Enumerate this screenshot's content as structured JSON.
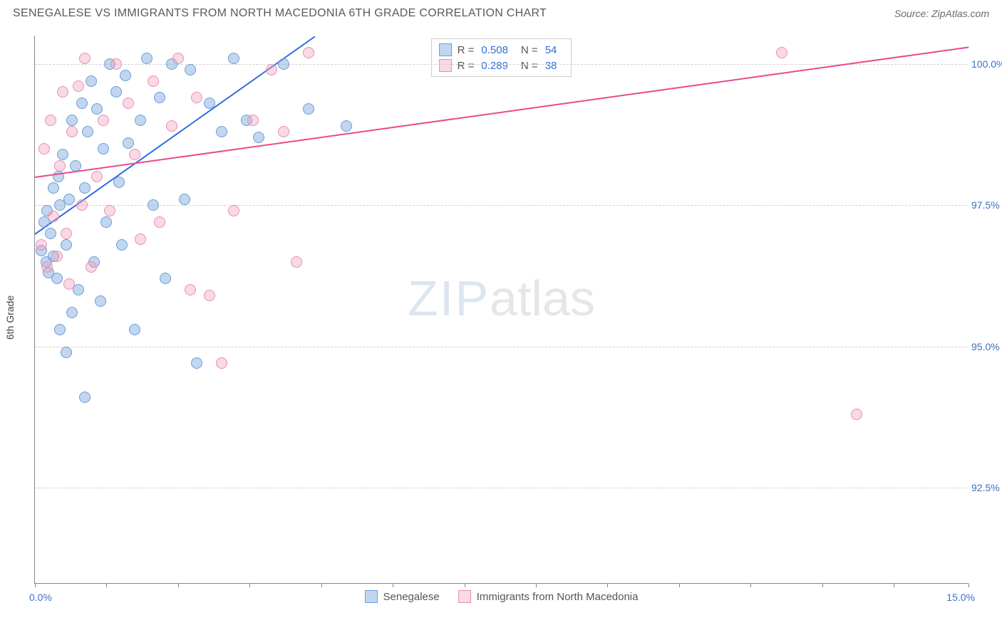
{
  "header": {
    "title": "SENEGALESE VS IMMIGRANTS FROM NORTH MACEDONIA 6TH GRADE CORRELATION CHART",
    "source": "Source: ZipAtlas.com"
  },
  "chart": {
    "type": "scatter",
    "y_axis_label": "6th Grade",
    "xlim": [
      0.0,
      15.0
    ],
    "ylim": [
      90.8,
      100.5
    ],
    "x_first_tick_label": "0.0%",
    "x_last_tick_label": "15.0%",
    "x_tick_positions": [
      0,
      1.15,
      2.3,
      3.45,
      4.6,
      5.75,
      6.9,
      8.05,
      9.2,
      10.35,
      11.5,
      12.65,
      13.8,
      15.0
    ],
    "y_ticks": [
      {
        "v": 92.5,
        "label": "92.5%"
      },
      {
        "v": 95.0,
        "label": "95.0%"
      },
      {
        "v": 97.5,
        "label": "97.5%"
      },
      {
        "v": 100.0,
        "label": "100.0%"
      }
    ],
    "grid_color": "#d0d0d0",
    "background": "#ffffff",
    "watermark": {
      "part1": "ZIP",
      "part2": "atlas"
    },
    "series": [
      {
        "name": "Senegalese",
        "fill": "rgba(120,165,220,0.45)",
        "stroke": "#6a9fd8",
        "line_color": "#2d6fe0",
        "line": {
          "x1": 0.0,
          "y1": 97.0,
          "x2": 4.5,
          "y2": 100.5
        },
        "stats": {
          "R": "0.508",
          "N": "54"
        },
        "points": [
          [
            0.1,
            96.7
          ],
          [
            0.15,
            97.2
          ],
          [
            0.18,
            96.5
          ],
          [
            0.2,
            97.4
          ],
          [
            0.22,
            96.3
          ],
          [
            0.25,
            97.0
          ],
          [
            0.3,
            96.6
          ],
          [
            0.3,
            97.8
          ],
          [
            0.35,
            96.2
          ],
          [
            0.38,
            98.0
          ],
          [
            0.4,
            95.3
          ],
          [
            0.4,
            97.5
          ],
          [
            0.45,
            98.4
          ],
          [
            0.5,
            94.9
          ],
          [
            0.5,
            96.8
          ],
          [
            0.55,
            97.6
          ],
          [
            0.6,
            99.0
          ],
          [
            0.6,
            95.6
          ],
          [
            0.65,
            98.2
          ],
          [
            0.7,
            96.0
          ],
          [
            0.75,
            99.3
          ],
          [
            0.8,
            94.1
          ],
          [
            0.8,
            97.8
          ],
          [
            0.85,
            98.8
          ],
          [
            0.9,
            99.7
          ],
          [
            0.95,
            96.5
          ],
          [
            1.0,
            99.2
          ],
          [
            1.05,
            95.8
          ],
          [
            1.1,
            98.5
          ],
          [
            1.15,
            97.2
          ],
          [
            1.2,
            100.0
          ],
          [
            1.3,
            99.5
          ],
          [
            1.35,
            97.9
          ],
          [
            1.4,
            96.8
          ],
          [
            1.45,
            99.8
          ],
          [
            1.5,
            98.6
          ],
          [
            1.6,
            95.3
          ],
          [
            1.7,
            99.0
          ],
          [
            1.8,
            100.1
          ],
          [
            1.9,
            97.5
          ],
          [
            2.0,
            99.4
          ],
          [
            2.1,
            96.2
          ],
          [
            2.2,
            100.0
          ],
          [
            2.4,
            97.6
          ],
          [
            2.5,
            99.9
          ],
          [
            2.6,
            94.7
          ],
          [
            2.8,
            99.3
          ],
          [
            3.0,
            98.8
          ],
          [
            3.2,
            100.1
          ],
          [
            3.4,
            99.0
          ],
          [
            3.6,
            98.7
          ],
          [
            4.0,
            100.0
          ],
          [
            4.4,
            99.2
          ],
          [
            5.0,
            98.9
          ]
        ]
      },
      {
        "name": "Immigrants from North Macedonia",
        "fill": "rgba(240,160,190,0.4)",
        "stroke": "#e78fb0",
        "line_color": "#e84a8f",
        "line": {
          "x1": 0.0,
          "y1": 98.0,
          "x2": 15.0,
          "y2": 100.3
        },
        "stats": {
          "R": "0.289",
          "N": "38"
        },
        "points": [
          [
            0.1,
            96.8
          ],
          [
            0.15,
            98.5
          ],
          [
            0.2,
            96.4
          ],
          [
            0.25,
            99.0
          ],
          [
            0.3,
            97.3
          ],
          [
            0.35,
            96.6
          ],
          [
            0.4,
            98.2
          ],
          [
            0.45,
            99.5
          ],
          [
            0.5,
            97.0
          ],
          [
            0.55,
            96.1
          ],
          [
            0.6,
            98.8
          ],
          [
            0.7,
            99.6
          ],
          [
            0.75,
            97.5
          ],
          [
            0.8,
            100.1
          ],
          [
            0.9,
            96.4
          ],
          [
            1.0,
            98.0
          ],
          [
            1.1,
            99.0
          ],
          [
            1.2,
            97.4
          ],
          [
            1.3,
            100.0
          ],
          [
            1.5,
            99.3
          ],
          [
            1.6,
            98.4
          ],
          [
            1.7,
            96.9
          ],
          [
            1.9,
            99.7
          ],
          [
            2.0,
            97.2
          ],
          [
            2.2,
            98.9
          ],
          [
            2.3,
            100.1
          ],
          [
            2.5,
            96.0
          ],
          [
            2.6,
            99.4
          ],
          [
            2.8,
            95.9
          ],
          [
            3.0,
            94.7
          ],
          [
            3.2,
            97.4
          ],
          [
            3.5,
            99.0
          ],
          [
            3.8,
            99.9
          ],
          [
            4.0,
            98.8
          ],
          [
            4.2,
            96.5
          ],
          [
            4.4,
            100.2
          ],
          [
            12.0,
            100.2
          ],
          [
            13.2,
            93.8
          ]
        ]
      }
    ],
    "legend_labels": [
      "Senegalese",
      "Immigrants from North Macedonia"
    ],
    "stats_labels": {
      "R": "R =",
      "N": "N ="
    }
  }
}
